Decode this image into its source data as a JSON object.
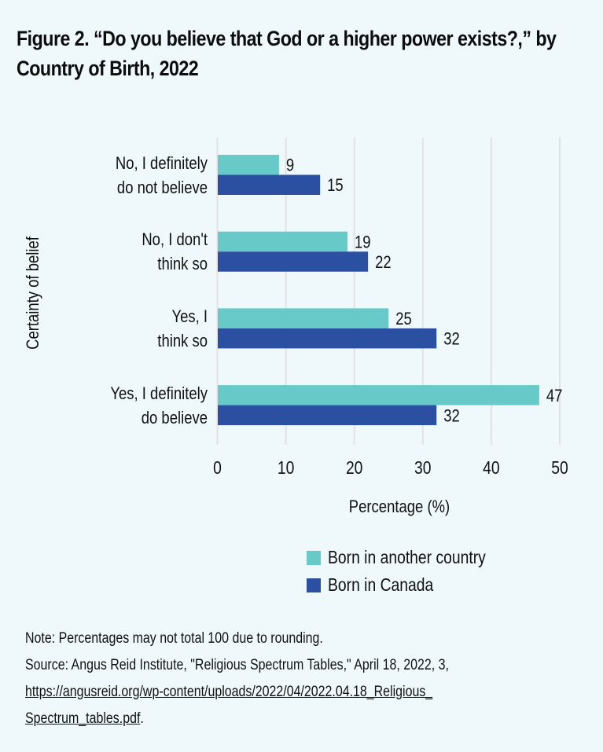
{
  "title": "Figure 2. “Do you believe that God or a higher power exists?,” by Country of Birth, 2022",
  "chart_data": {
    "type": "bar",
    "orientation": "horizontal",
    "title": "Figure 2. “Do you believe that God or a higher power exists?,” by Country of Birth, 2022",
    "categories": [
      [
        "No, I definitely",
        "do not believe"
      ],
      [
        "No, I don't",
        "think so"
      ],
      [
        "Yes, I",
        "think so"
      ],
      [
        "Yes, I definitely",
        "do believe"
      ]
    ],
    "series": [
      {
        "name": "Born in another country",
        "color": "#67C9C8",
        "values": [
          9,
          19,
          25,
          47
        ]
      },
      {
        "name": "Born in Canada",
        "color": "#2B4FA1",
        "values": [
          15,
          22,
          32,
          32
        ]
      }
    ],
    "xlabel": "Percentage (%)",
    "ylabel": "Certainty of belief",
    "xlim": [
      0,
      50
    ],
    "xticks": [
      "0",
      "10",
      "20",
      "30",
      "40",
      "50"
    ],
    "grid": true,
    "legend_position": "bottom-right"
  },
  "notes": {
    "note": "Note: Percentages may not total 100 due to rounding.",
    "source": "Source: Angus Reid Institute, \"Religious Spectrum Tables,\" April 18, 2022, 3,",
    "link_line1": "https://angusreid.org/wp-content/uploads/2022/04/2022.04.18_Religious_",
    "link_line2": "Spectrum_tables.pdf",
    "trailing": "."
  }
}
